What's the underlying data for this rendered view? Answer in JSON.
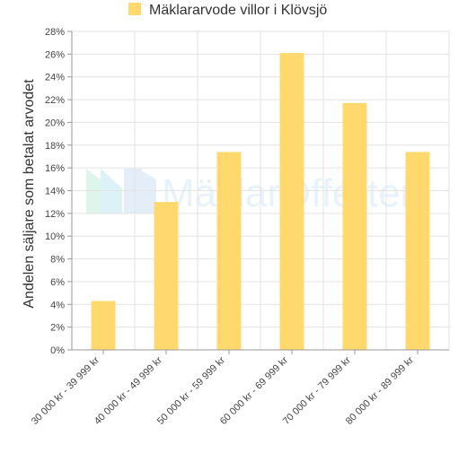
{
  "chart_data": {
    "type": "bar",
    "title": "",
    "legend": {
      "placement": "top",
      "items": [
        {
          "label": "Mäklararvode villor i Klövsjö",
          "color": "#ffd86e"
        }
      ]
    },
    "xlabel": "",
    "ylabel": "Andelen säljare som betalat arvodet",
    "categories": [
      "30 000 kr - 39 999 kr",
      "40 000 kr - 49 999 kr",
      "50 000 kr - 59 999 kr",
      "60 000 kr - 69 999 kr",
      "70 000 kr - 79 999 kr",
      "80 000 kr - 89 999 kr"
    ],
    "series": [
      {
        "name": "Mäklararvode villor i Klövsjö",
        "values": [
          4.3,
          13.0,
          17.4,
          26.1,
          21.7,
          17.4
        ]
      }
    ],
    "ylim": [
      0,
      28
    ],
    "yticks": [
      "0%",
      "2%",
      "4%",
      "6%",
      "8%",
      "10%",
      "12%",
      "14%",
      "16%",
      "18%",
      "20%",
      "22%",
      "24%",
      "26%",
      "28%"
    ],
    "grid": true,
    "bar_color": "#ffd86e",
    "watermark": "MäklarOfferter"
  }
}
